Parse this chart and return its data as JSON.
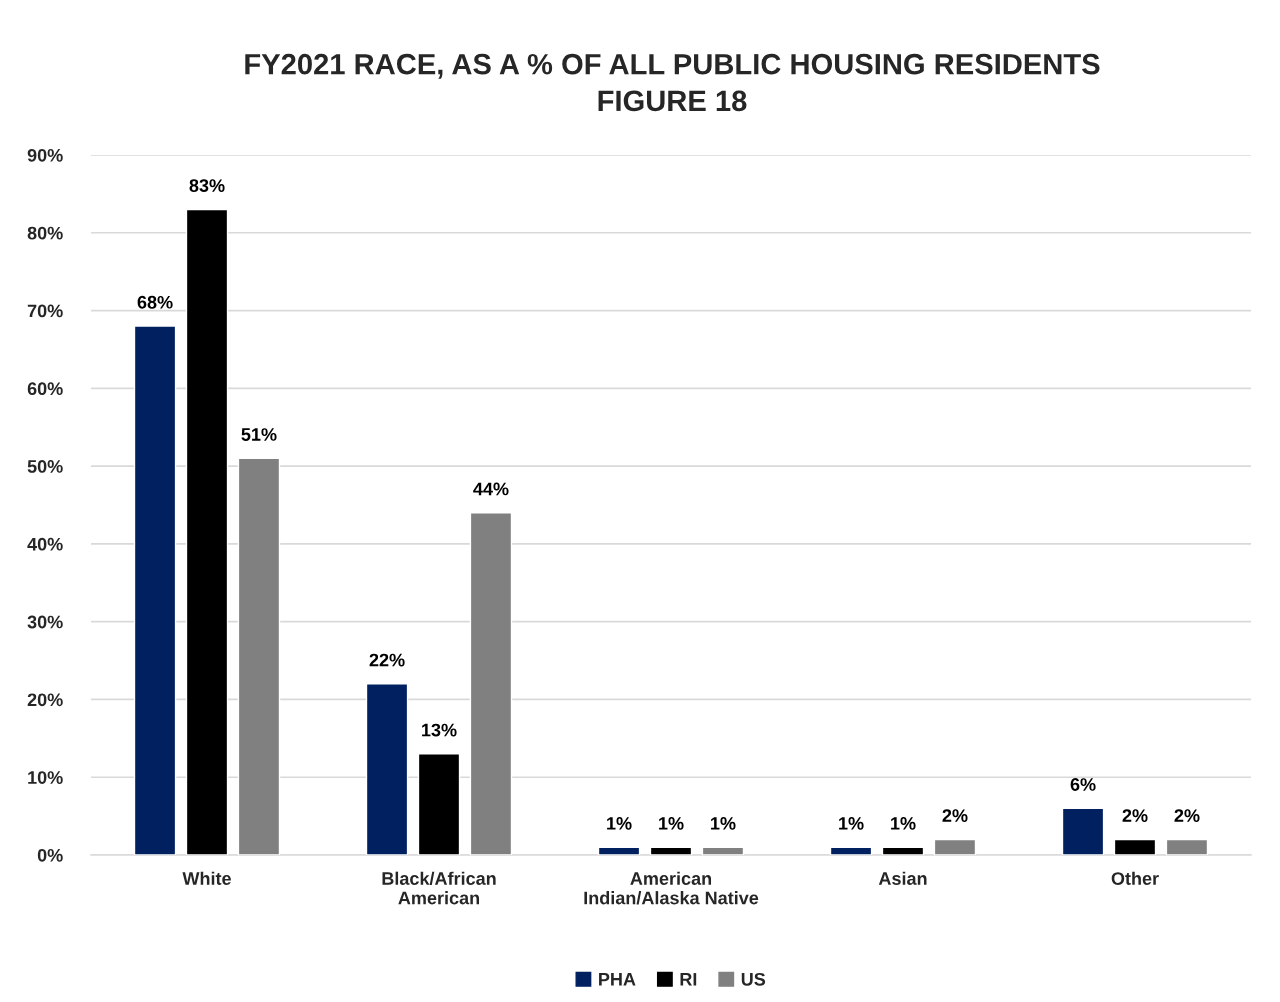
{
  "chart_data": {
    "type": "bar",
    "title": "FY2021 RACE, AS A % OF ALL PUBLIC HOUSING RESIDENTS\nFIGURE 18",
    "categories": [
      "White",
      "Black/African\nAmerican",
      "American\nIndian/Alaska Native",
      "Asian",
      "Other"
    ],
    "series": [
      {
        "name": "PHA",
        "color": "#002060",
        "values": [
          68,
          22,
          1,
          1,
          6
        ],
        "value_labels": [
          "68%",
          "22%",
          "1%",
          "1%",
          "6%"
        ]
      },
      {
        "name": "RI",
        "color": "#000000",
        "values": [
          83,
          13,
          1,
          1,
          2
        ],
        "value_labels": [
          "83%",
          "13%",
          "1%",
          "1%",
          "2%"
        ]
      },
      {
        "name": "US",
        "color": "#808080",
        "values": [
          51,
          44,
          1,
          2,
          2
        ],
        "value_labels": [
          "51%",
          "44%",
          "1%",
          "2%",
          "2%"
        ]
      }
    ],
    "ylim": [
      0,
      90
    ],
    "yticks": [
      {
        "value": 0,
        "label": "0%"
      },
      {
        "value": 10,
        "label": "10%"
      },
      {
        "value": 20,
        "label": "20%"
      },
      {
        "value": 30,
        "label": "30%"
      },
      {
        "value": 40,
        "label": "40%"
      },
      {
        "value": 50,
        "label": "50%"
      },
      {
        "value": 60,
        "label": "60%"
      },
      {
        "value": 70,
        "label": "70%"
      },
      {
        "value": 80,
        "label": "80%"
      },
      {
        "value": 90,
        "label": "90%"
      }
    ],
    "grid": "y",
    "legend": "bottom"
  }
}
